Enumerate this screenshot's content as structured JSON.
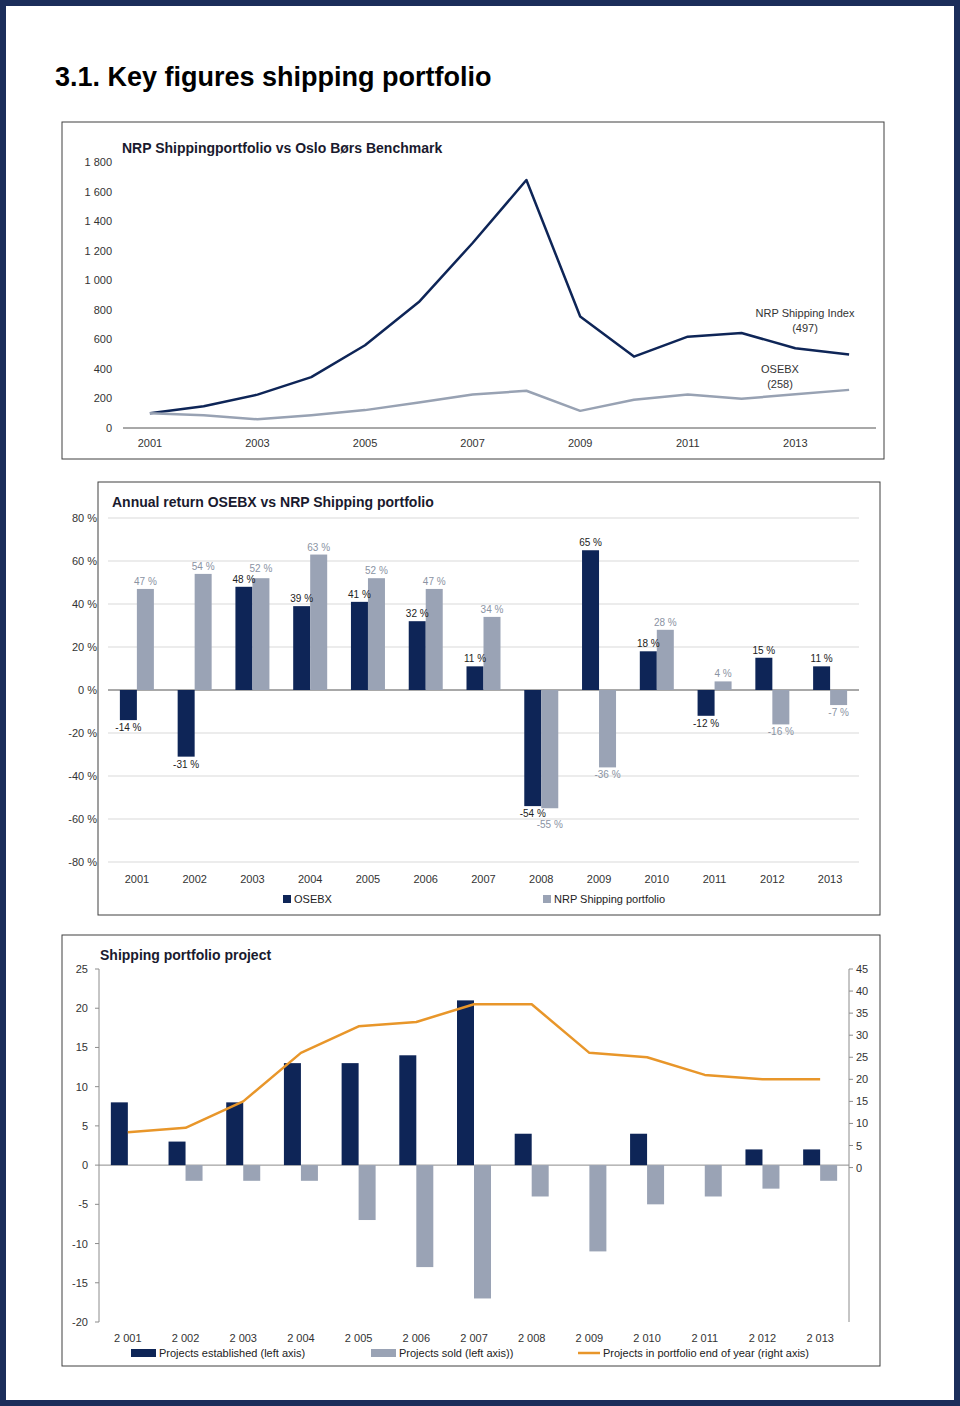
{
  "page": {
    "heading": "3.1. Key figures shipping portfolio"
  },
  "chart_data": [
    {
      "type": "line",
      "title": "NRP Shippingportfolio vs Oslo Børs Benchmark",
      "categories": [
        "2001",
        null,
        "2003",
        null,
        "2005",
        null,
        "2007",
        null,
        "2009",
        null,
        "2011",
        null,
        "2013",
        null
      ],
      "series": [
        {
          "name": "NRP Shipping Index",
          "color": "#0e2557",
          "values": [
            100,
            147,
            226,
            344,
            560,
            852,
            1252,
            1678,
            755,
            483,
            618,
            643,
            540,
            497
          ]
        },
        {
          "name": "OSEBX",
          "color": "#98a2b3",
          "values": [
            100,
            86,
            59,
            87,
            121,
            172,
            227,
            252,
            116,
            191,
            226,
            198,
            228,
            258
          ]
        }
      ],
      "annotations": [
        "(497)",
        "(258)"
      ],
      "ylim": [
        0,
        1800
      ],
      "yticks": [
        0,
        200,
        400,
        600,
        800,
        {
          "value": 1000,
          "label": "1 000"
        },
        {
          "value": 1200,
          "label": "1 200"
        },
        {
          "value": 1400,
          "label": "1 400"
        },
        {
          "value": 1600,
          "label": "1 600"
        },
        {
          "value": 1800,
          "label": "1 800"
        }
      ],
      "grid": false
    },
    {
      "type": "bar",
      "title": "Annual return OSEBX vs NRP Shipping portfolio",
      "categories": [
        "2001",
        "2002",
        "2003",
        "2004",
        "2005",
        "2006",
        "2007",
        "2008",
        "2009",
        "2010",
        "2011",
        "2012",
        "2013"
      ],
      "series": [
        {
          "name": "OSEBX",
          "color": "#0e2557",
          "values": [
            -14,
            -31,
            48,
            39,
            41,
            32,
            11,
            -54,
            65,
            18,
            -12,
            15,
            11
          ],
          "value_labels": [
            "-14 %",
            "-31 %",
            "48 %",
            "39 %",
            "41 %",
            "32 %",
            "11 %",
            "-54 %",
            "65 %",
            "18 %",
            "-12 %",
            "15 %",
            "11 %"
          ]
        },
        {
          "name": "NRP Shipping portfolio",
          "color": "#9aa3b5",
          "values": [
            47,
            54,
            52,
            63,
            52,
            47,
            34,
            -55,
            -36,
            28,
            4,
            -16,
            -7
          ],
          "value_labels": [
            "47 %",
            "54 %",
            "52 %",
            "63 %",
            "52 %",
            "47 %",
            "34 %",
            "-55 %",
            "-36 %",
            "28 %",
            "4 %",
            "-16 %",
            "-7 %"
          ]
        }
      ],
      "ylim": [
        -80,
        80
      ],
      "yticks": [
        {
          "value": -80,
          "label": "-80 %"
        },
        {
          "value": -60,
          "label": "-60 %"
        },
        {
          "value": -40,
          "label": "-40 %"
        },
        {
          "value": -20,
          "label": "-20 %"
        },
        {
          "value": 0,
          "label": "0 %"
        },
        {
          "value": 20,
          "label": "20 %"
        },
        {
          "value": 40,
          "label": "40 %"
        },
        {
          "value": 60,
          "label": "60 %"
        },
        {
          "value": 80,
          "label": "80 %"
        }
      ],
      "grid": true,
      "data_labels": true,
      "legend": "bottom"
    },
    {
      "type": "bar",
      "title": "Shipping portfolio project",
      "categories": [
        "2 001",
        "2 002",
        "2 003",
        "2 004",
        "2 005",
        "2 006",
        "2 007",
        "2 008",
        "2 009",
        "2 010",
        "2 011",
        "2 012",
        "2 013"
      ],
      "series": [
        {
          "name": "Projects established (left axis)",
          "type": "bar",
          "color": "#0e2557",
          "values": [
            8,
            3,
            8,
            13,
            13,
            14,
            21,
            4,
            0,
            4,
            0,
            2,
            2
          ]
        },
        {
          "name": "Projects sold (left axis))",
          "type": "bar",
          "color": "#9aa3b5",
          "values": [
            0,
            -2,
            -2,
            -2,
            -7,
            -13,
            -17,
            -4,
            -11,
            -5,
            -4,
            -3,
            -2
          ]
        },
        {
          "name": "Projects in portfolio end of year (right axis)",
          "type": "line",
          "color": "#e8962a",
          "axis": "y2",
          "values": [
            8,
            9,
            15,
            26,
            32,
            33,
            37,
            37,
            26,
            25,
            21,
            20,
            20
          ]
        }
      ],
      "ylim": [
        -20,
        25
      ],
      "yticks": [
        -20,
        -15,
        -10,
        -5,
        0,
        5,
        10,
        15,
        20,
        25
      ],
      "y2lim": [
        -35,
        45
      ],
      "y2ticks": [
        0,
        5,
        10,
        15,
        20,
        25,
        30,
        35,
        40,
        45
      ],
      "grid": false,
      "legend": "bottom"
    }
  ]
}
